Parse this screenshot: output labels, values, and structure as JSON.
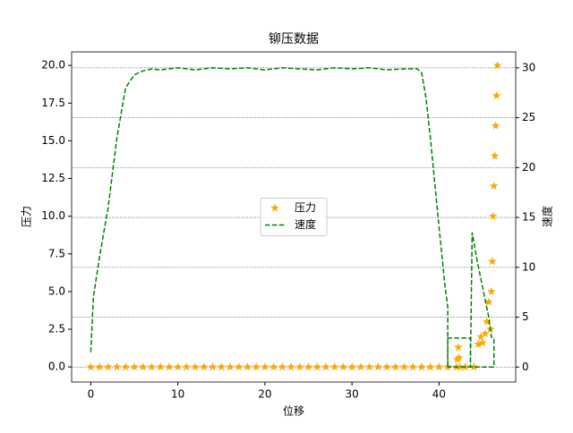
{
  "chart_data": {
    "type": "line",
    "title": "铆压数据",
    "xlabel": "位移",
    "ylabel": "压力",
    "y2label": "速度",
    "xlim": [
      -2.2,
      48.8
    ],
    "xticks": [
      0,
      10,
      20,
      30,
      40
    ],
    "ylim": [
      -1,
      20.9
    ],
    "yticks": [
      {
        "value": 0,
        "label": "0.0"
      },
      2.5,
      {
        "value": 5,
        "label": "5.0"
      },
      7.5,
      {
        "value": 10,
        "label": "10.0"
      },
      12.5,
      {
        "value": 15,
        "label": "15.0"
      },
      17.5,
      {
        "value": 20,
        "label": "20.0"
      }
    ],
    "y2lim": [
      -1.5,
      31.6
    ],
    "y2ticks": [
      0,
      5,
      10,
      15,
      20,
      25,
      30
    ],
    "grid": "y2",
    "legend": "center",
    "series": [
      {
        "name": "压力",
        "type": "scatter",
        "marker": "star",
        "color": "#ffa500",
        "axis": "y",
        "x": [
          0,
          1,
          2,
          3,
          4,
          5,
          6,
          7,
          8,
          9,
          10,
          11,
          12,
          13,
          14,
          15,
          16,
          17,
          18,
          19,
          20,
          21,
          22,
          23,
          24,
          25,
          26,
          27,
          28,
          29,
          30,
          31,
          32,
          33,
          34,
          35,
          36,
          37,
          38,
          39,
          40,
          41,
          42,
          42.1,
          42.2,
          42.3,
          42.4,
          43,
          44,
          44.5,
          44.8,
          45,
          45.3,
          45.5,
          45.7,
          45.9,
          46,
          46.1,
          46.2,
          46.3,
          46.4,
          46.5,
          46.6,
          46.7
        ],
        "values": [
          0,
          0,
          0,
          0,
          0,
          0,
          0,
          0,
          0,
          0,
          0,
          0,
          0,
          0,
          0,
          0,
          0,
          0,
          0,
          0,
          0,
          0,
          0,
          0,
          0,
          0,
          0,
          0,
          0,
          0,
          0,
          0,
          0,
          0,
          0,
          0,
          0,
          0,
          0,
          0,
          0,
          0,
          0,
          0.5,
          1.3,
          0.6,
          0,
          0,
          0,
          1.5,
          2.0,
          1.6,
          2.2,
          3.0,
          4.3,
          2.5,
          5,
          7,
          10,
          12,
          14,
          16,
          18,
          20
        ]
      },
      {
        "name": "速度",
        "type": "line",
        "style": "dashed",
        "color": "#008000",
        "axis": "y2",
        "x": [
          0,
          0.3,
          1,
          2,
          3,
          4,
          5,
          6,
          7,
          8,
          10,
          12,
          14,
          16,
          18,
          20,
          22,
          24,
          26,
          28,
          30,
          32,
          34,
          36,
          37.5,
          38,
          38.5,
          39,
          40,
          40.7,
          41,
          41,
          41,
          43.6,
          43.6,
          43.8,
          44.3,
          45,
          45.7,
          46,
          46.3,
          46.3,
          41
        ],
        "values": [
          1.5,
          7,
          11,
          16,
          23,
          28,
          29.3,
          29.7,
          29.9,
          29.8,
          30,
          29.8,
          30,
          29.9,
          30,
          29.8,
          30,
          29.9,
          29.8,
          30,
          29.9,
          30,
          29.8,
          29.9,
          29.9,
          29.5,
          27,
          23,
          14,
          8,
          6,
          0,
          2.9,
          2.9,
          0,
          13.5,
          11,
          8,
          5,
          3,
          2.9,
          0,
          0
        ]
      }
    ]
  }
}
